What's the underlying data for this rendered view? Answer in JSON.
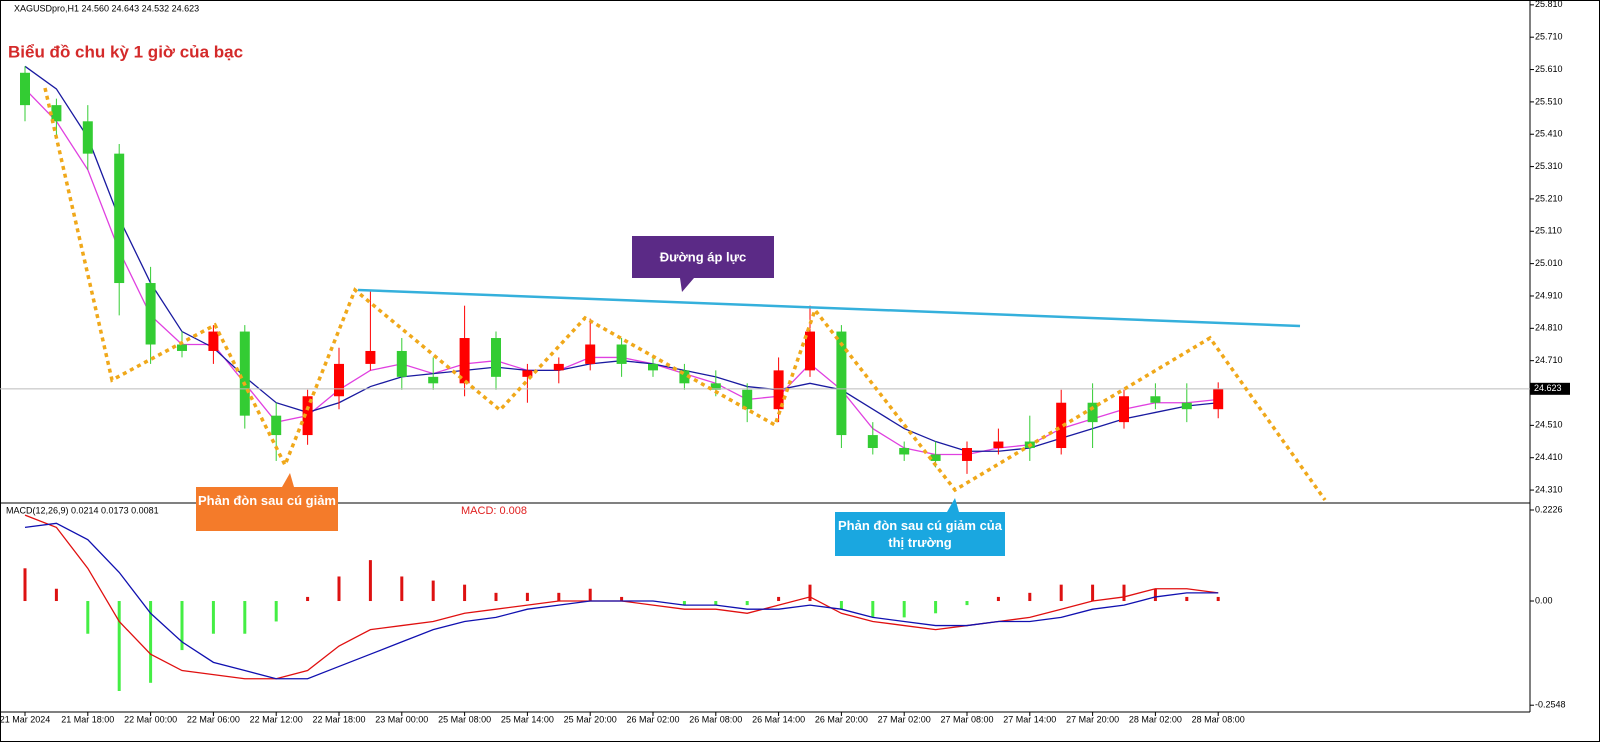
{
  "chart_data": [
    {
      "type": "candlestick",
      "title": "Biểu đồ chu kỳ 1 giờ của bạc",
      "subtitle": "XAGUSDpro,H1  24.560 24.643 24.532 24.623",
      "annotations": [
        "Đường áp lực",
        "Phản đòn sau cú giảm",
        "Phản đòn sau cú giảm của thị trường"
      ],
      "categories": [
        "21 Mar 2024",
        null,
        "21 Mar 18:00",
        null,
        "22 Mar 00:00",
        null,
        "22 Mar 06:00",
        null,
        "22 Mar 12:00",
        null,
        "22 Mar 18:00",
        null,
        "23 Mar 00:00",
        null,
        "25 Mar 08:00",
        null,
        "25 Mar 14:00",
        null,
        "25 Mar 20:00",
        null,
        "26 Mar 02:00",
        null,
        "26 Mar 08:00",
        null,
        "26 Mar 14:00",
        null,
        "26 Mar 20:00",
        null,
        "27 Mar 02:00",
        null,
        "27 Mar 08:00",
        null,
        "27 Mar 14:00",
        null,
        "27 Mar 20:00",
        null,
        "28 Mar 02:00",
        null,
        "28 Mar 08:00"
      ],
      "open": [
        25.6,
        25.5,
        25.45,
        25.35,
        24.95,
        24.76,
        24.74,
        24.8,
        24.54,
        24.48,
        24.6,
        24.7,
        24.74,
        24.66,
        24.64,
        24.78,
        24.66,
        24.68,
        24.7,
        24.76,
        24.7,
        24.68,
        24.64,
        24.62,
        24.56,
        24.68,
        24.8,
        24.48,
        24.44,
        24.42,
        24.4,
        24.44,
        24.46,
        24.44,
        24.58,
        24.52,
        24.6,
        24.58,
        24.56
      ],
      "high": [
        25.62,
        25.52,
        25.5,
        25.38,
        25.0,
        24.8,
        24.82,
        24.82,
        24.58,
        24.62,
        24.75,
        24.93,
        24.78,
        24.72,
        24.88,
        24.8,
        24.7,
        24.72,
        24.84,
        24.78,
        24.72,
        24.7,
        24.68,
        24.64,
        24.72,
        24.88,
        24.82,
        24.52,
        24.46,
        24.46,
        24.46,
        24.5,
        24.54,
        24.62,
        24.64,
        24.62,
        24.64,
        24.64,
        24.643
      ],
      "low": [
        25.45,
        25.4,
        25.3,
        24.85,
        24.7,
        24.72,
        24.7,
        24.5,
        24.4,
        24.45,
        24.56,
        24.68,
        24.62,
        24.62,
        24.6,
        24.62,
        24.58,
        24.64,
        24.68,
        24.66,
        24.66,
        24.62,
        24.6,
        24.52,
        24.52,
        24.66,
        24.44,
        24.42,
        24.4,
        24.38,
        24.36,
        24.42,
        24.4,
        24.42,
        24.44,
        24.5,
        24.56,
        24.52,
        24.532
      ],
      "close": [
        25.5,
        25.45,
        25.35,
        24.95,
        24.76,
        24.74,
        24.8,
        24.54,
        24.48,
        24.6,
        24.7,
        24.74,
        24.66,
        24.64,
        24.78,
        24.66,
        24.68,
        24.7,
        24.76,
        24.7,
        24.68,
        24.64,
        24.62,
        24.56,
        24.68,
        24.8,
        24.48,
        24.44,
        24.42,
        24.4,
        24.44,
        24.46,
        24.44,
        24.58,
        24.52,
        24.6,
        24.58,
        24.56,
        24.623
      ],
      "colors": {
        "up": "#ff0000",
        "down": "#33cc33"
      },
      "lines": [
        {
          "color": "#e040e0",
          "values": [
            25.55,
            25.45,
            25.3,
            25.05,
            24.85,
            24.76,
            24.76,
            24.64,
            24.52,
            24.54,
            24.62,
            24.68,
            24.7,
            24.67,
            24.7,
            24.71,
            24.68,
            24.68,
            24.72,
            24.72,
            24.7,
            24.67,
            24.64,
            24.59,
            24.6,
            24.7,
            24.62,
            24.5,
            24.44,
            24.42,
            24.42,
            24.44,
            24.45,
            24.5,
            24.53,
            24.56,
            24.58,
            24.58,
            24.59
          ]
        },
        {
          "color": "#1a1aa0",
          "values": [
            25.62,
            25.55,
            25.4,
            25.15,
            24.95,
            24.8,
            24.75,
            24.66,
            24.58,
            24.55,
            24.58,
            24.63,
            24.66,
            24.67,
            24.68,
            24.69,
            24.68,
            24.68,
            24.7,
            24.71,
            24.7,
            24.68,
            24.66,
            24.63,
            24.62,
            24.64,
            24.62,
            24.56,
            24.5,
            24.46,
            24.43,
            24.43,
            24.44,
            24.47,
            24.5,
            24.53,
            24.55,
            24.57,
            24.58
          ]
        }
      ],
      "current_price": 24.623,
      "ylim": [
        24.27,
        25.825
      ],
      "yticks": [
        {
          "value": 25.81,
          "label": "25.810"
        },
        {
          "value": 25.71,
          "label": "25.710"
        },
        {
          "value": 25.61,
          "label": "25.610"
        },
        {
          "value": 25.51,
          "label": "25.510"
        },
        {
          "value": 25.41,
          "label": "25.410"
        },
        {
          "value": 25.31,
          "label": "25.310"
        },
        {
          "value": 25.21,
          "label": "25.210"
        },
        {
          "value": 25.11,
          "label": "25.110"
        },
        {
          "value": 25.01,
          "label": "25.010"
        },
        {
          "value": 24.91,
          "label": "24.910"
        },
        {
          "value": 24.81,
          "label": "24.810"
        },
        {
          "value": 24.71,
          "label": "24.710"
        },
        {
          "value": 24.51,
          "label": "24.510"
        },
        {
          "value": 24.41,
          "label": "24.410"
        },
        {
          "value": 24.31,
          "label": "24.310"
        }
      ]
    },
    {
      "type": "bar",
      "title": "MACD(12,26,9) 0.0214 0.0173 0.0081",
      "subtitle": "MACD: 0.008",
      "values": [
        0.08,
        0.03,
        -0.08,
        -0.22,
        -0.2,
        -0.12,
        -0.08,
        -0.08,
        -0.05,
        0.01,
        0.06,
        0.1,
        0.06,
        0.05,
        0.04,
        0.02,
        0.02,
        0.02,
        0.03,
        0.01,
        0.0,
        -0.01,
        -0.01,
        -0.01,
        0.01,
        0.04,
        -0.02,
        -0.04,
        -0.04,
        -0.03,
        -0.01,
        0.01,
        0.02,
        0.04,
        0.04,
        0.04,
        0.03,
        0.01,
        0.01
      ],
      "colors": {
        "up": "#dd1111",
        "down": "#44ee44"
      },
      "lines": [
        {
          "color": "#e01010",
          "values": [
            0.21,
            0.18,
            0.08,
            -0.05,
            -0.13,
            -0.17,
            -0.18,
            -0.19,
            -0.19,
            -0.17,
            -0.11,
            -0.07,
            -0.06,
            -0.05,
            -0.03,
            -0.02,
            -0.01,
            0.0,
            0.0,
            0.0,
            -0.01,
            -0.02,
            -0.02,
            -0.03,
            -0.01,
            0.01,
            -0.03,
            -0.05,
            -0.06,
            -0.07,
            -0.06,
            -0.05,
            -0.04,
            -0.02,
            0.0,
            0.01,
            0.03,
            0.03,
            0.02
          ]
        },
        {
          "color": "#1010b0",
          "values": [
            0.18,
            0.19,
            0.15,
            0.07,
            -0.03,
            -0.1,
            -0.15,
            -0.17,
            -0.19,
            -0.19,
            -0.16,
            -0.13,
            -0.1,
            -0.07,
            -0.05,
            -0.04,
            -0.02,
            -0.01,
            0.0,
            0.0,
            0.0,
            -0.01,
            -0.01,
            -0.02,
            -0.02,
            -0.01,
            -0.02,
            -0.04,
            -0.05,
            -0.06,
            -0.06,
            -0.05,
            -0.05,
            -0.04,
            -0.02,
            -0.01,
            0.01,
            0.02,
            0.02
          ]
        }
      ],
      "ylim": [
        -0.2714,
        0.2397
      ],
      "yticks": [
        0.2226,
        {
          "value": 0,
          "label": "0.00"
        },
        -0.2548
      ]
    }
  ]
}
